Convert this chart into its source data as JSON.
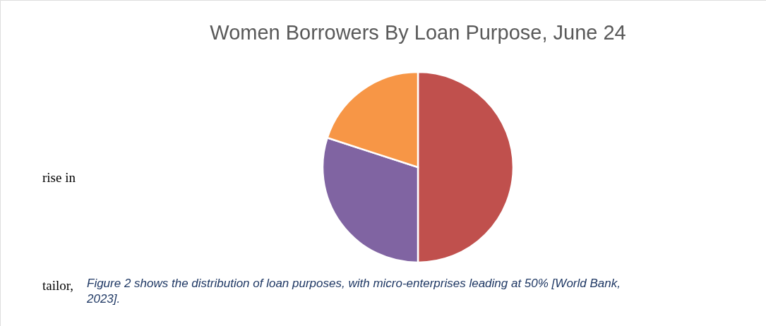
{
  "chart_data": {
    "type": "pie",
    "title": "Women Borrowers By Loan Purpose, June 24",
    "categories": [
      null,
      null,
      null
    ],
    "values": [
      50,
      30,
      20
    ],
    "colors": [
      "#c0504d",
      "#8064a2",
      "#f79646"
    ],
    "annotations": [
      "rise in",
      "tailor,",
      "Figure 2 shows the distribution of loan purposes, with micro-enterprises leading at 50% [World Bank, 2023]."
    ]
  }
}
